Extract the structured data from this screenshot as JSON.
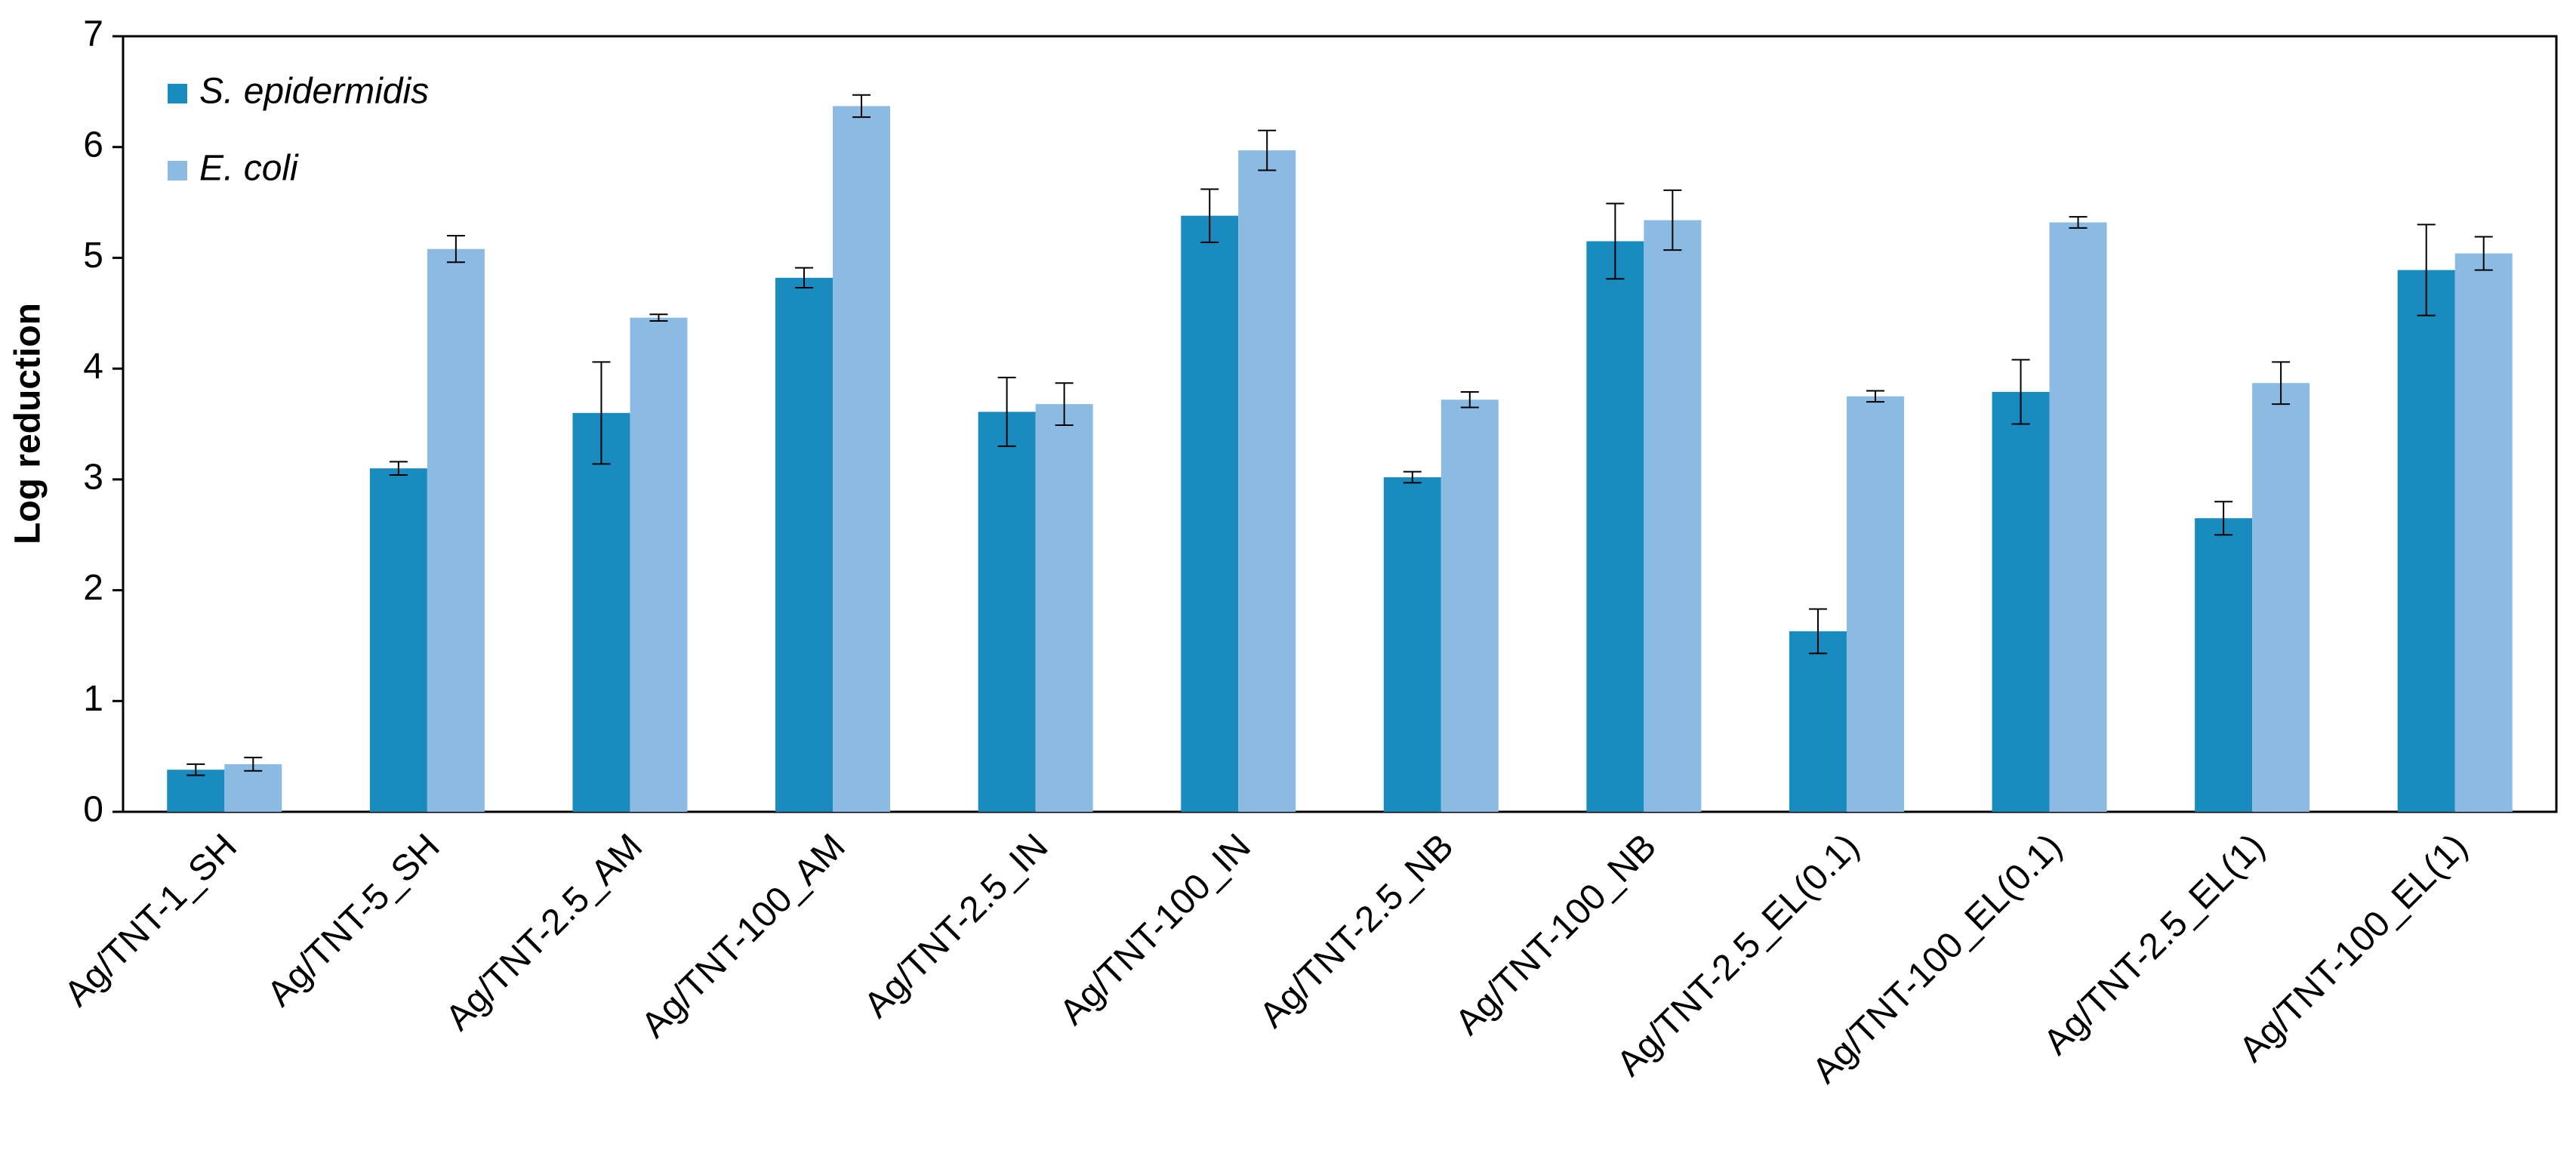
{
  "chart_data": {
    "type": "bar",
    "y_label": "Log reduction",
    "categories": [
      "Ag/TNT-1_SH",
      "Ag/TNT-5_SH",
      "Ag/TNT-2.5_AM",
      "Ag/TNT-100_AM",
      "Ag/TNT-2.5_IN",
      "Ag/TNT-100_IN",
      "Ag/TNT-2.5_NB",
      "Ag/TNT-100_NB",
      "Ag/TNT-2.5_EL(0.1)",
      "Ag/TNT-100_EL(0.1)",
      "Ag/TNT-2.5_EL(1)",
      "Ag/TNT-100_EL(1)"
    ],
    "series": [
      {
        "name": "S. epidermidis",
        "color": "#1a8bbf",
        "values": [
          0.38,
          3.1,
          3.6,
          4.82,
          3.61,
          5.38,
          3.02,
          5.15,
          1.63,
          3.79,
          2.65,
          4.89
        ],
        "errors": [
          0.05,
          0.06,
          0.46,
          0.09,
          0.31,
          0.24,
          0.05,
          0.34,
          0.2,
          0.29,
          0.15,
          0.41
        ]
      },
      {
        "name": "E. coli",
        "color": "#8bbbe2",
        "values": [
          0.43,
          5.08,
          4.46,
          6.37,
          3.68,
          5.97,
          3.72,
          5.34,
          3.75,
          5.32,
          3.87,
          5.04
        ],
        "errors": [
          0.06,
          0.12,
          0.03,
          0.1,
          0.19,
          0.18,
          0.07,
          0.27,
          0.05,
          0.05,
          0.19,
          0.15
        ]
      }
    ],
    "ylim": [
      0,
      7
    ],
    "yticks": [
      0,
      1,
      2,
      3,
      4,
      5,
      6,
      7
    ],
    "legend": "upper-left"
  }
}
